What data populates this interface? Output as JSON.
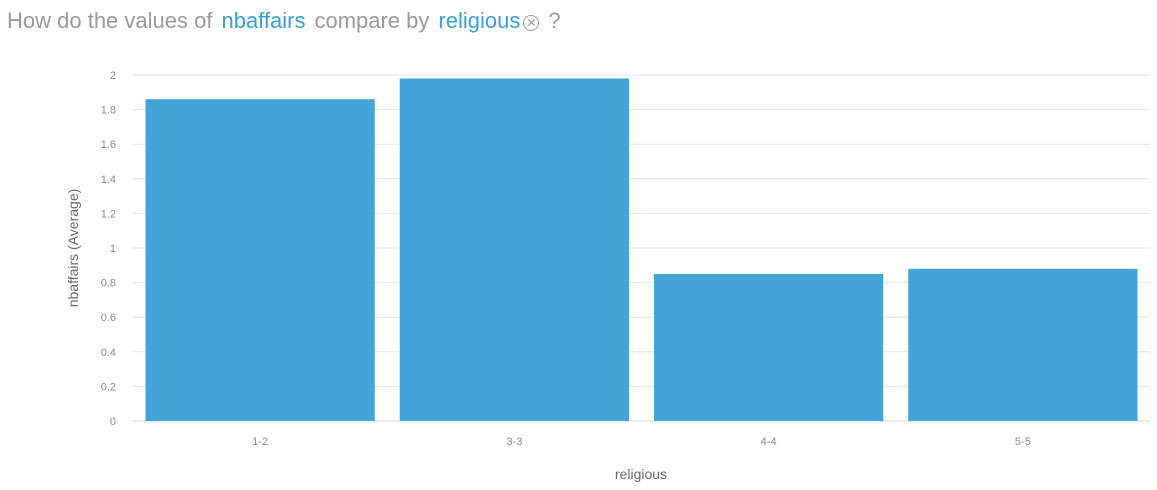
{
  "question": {
    "prefix": "How do the values of",
    "measure": "nbaffairs",
    "middle": "compare by",
    "dimension": "religious",
    "clear_icon": "close-circle-icon",
    "suffix": "?"
  },
  "colors": {
    "accent": "#3b9fd1",
    "bar": "#3a9fd6",
    "text_muted": "#9a9a9a",
    "grid": "#e6e6e6"
  },
  "chart_data": {
    "type": "bar",
    "title": "",
    "xlabel": "religious",
    "ylabel": "nbaffairs (Average)",
    "categories": [
      "1-2",
      "3-3",
      "4-4",
      "5-5"
    ],
    "values": [
      1.86,
      1.98,
      0.85,
      0.88
    ],
    "ylim": [
      0,
      2
    ],
    "yticks": [
      "0",
      "0.2",
      "0.4",
      "0.6",
      "0.8",
      "1",
      "1.2",
      "1.4",
      "1.6",
      "1.8",
      "2"
    ],
    "grid": true,
    "legend": "none"
  }
}
